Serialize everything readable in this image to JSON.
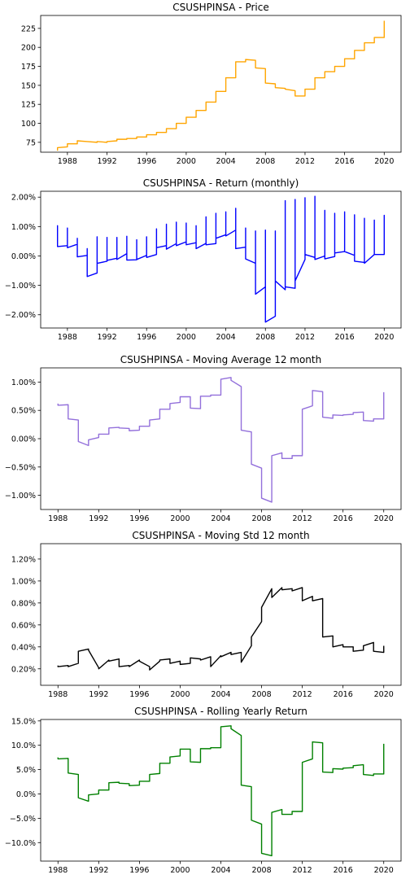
{
  "chart_data": [
    {
      "type": "line",
      "title": "CSUSHPINSA - Price",
      "color": "#ffa500",
      "xlim": [
        1985.3,
        2021.7
      ],
      "ylim": [
        62,
        242
      ],
      "xticks": [
        1988,
        1992,
        1996,
        2000,
        2004,
        2008,
        2012,
        2016,
        2020
      ],
      "xtick_labels": [
        "1988",
        "1992",
        "1996",
        "2000",
        "2004",
        "2008",
        "2012",
        "2016",
        "2020"
      ],
      "yticks": [
        75,
        100,
        125,
        150,
        175,
        200,
        225
      ],
      "ytick_labels": [
        "75",
        "100",
        "125",
        "150",
        "175",
        "200",
        "225"
      ],
      "x": [
        1987,
        1987,
        1988,
        1988,
        1989,
        1989,
        1990,
        1990,
        1991,
        1991,
        1992,
        1992,
        1993,
        1993,
        1994,
        1994,
        1995,
        1995,
        1996,
        1996,
        1997,
        1997,
        1998,
        1998,
        1999,
        1999,
        2000,
        2000,
        2001,
        2001,
        2002,
        2002,
        2003,
        2003,
        2004,
        2004,
        2005,
        2005,
        2006,
        2006,
        2007,
        2007,
        2008,
        2008,
        2009,
        2009,
        2010,
        2010,
        2011,
        2011,
        2012,
        2012,
        2013,
        2013,
        2014,
        2014,
        2015,
        2015,
        2016,
        2016,
        2017,
        2017,
        2018,
        2018,
        2019,
        2019,
        2020,
        2020
      ],
      "y": [
        64,
        68,
        69,
        73,
        73,
        77,
        76,
        76,
        75,
        76,
        75,
        76,
        77,
        79,
        79,
        80,
        80,
        82,
        82,
        85,
        85,
        88,
        88,
        93,
        93,
        100,
        100,
        108,
        108,
        117,
        117,
        128,
        128,
        142,
        142,
        160,
        160,
        181,
        181,
        184,
        183,
        173,
        172,
        153,
        152,
        147,
        146,
        145,
        143,
        136,
        136,
        145,
        145,
        160,
        160,
        168,
        168,
        175,
        175,
        185,
        185,
        196,
        196,
        206,
        206,
        213,
        213,
        235
      ]
    },
    {
      "type": "line",
      "title": "CSUSHPINSA - Return (monthly)",
      "color": "#0000ff",
      "xlim": [
        1985.3,
        2021.7
      ],
      "ylim": [
        -0.0245,
        0.022
      ],
      "xticks": [
        1988,
        1992,
        1996,
        2000,
        2004,
        2008,
        2012,
        2016,
        2020
      ],
      "xtick_labels": [
        "1988",
        "1992",
        "1996",
        "2000",
        "2004",
        "2008",
        "2012",
        "2016",
        "2020"
      ],
      "yticks": [
        -0.02,
        -0.01,
        0.0,
        0.01,
        0.02
      ],
      "ytick_labels": [
        "−2.00%",
        "−1.00%",
        "0.00%",
        "1.00%",
        "2.00%"
      ],
      "x": [
        1987,
        1987,
        1987,
        1988,
        1988,
        1988,
        1989,
        1989,
        1989,
        1990,
        1990,
        1990,
        1991,
        1991,
        1991,
        1992,
        1992,
        1992,
        1993,
        1993,
        1993,
        1994,
        1994,
        1994,
        1995,
        1995,
        1995,
        1996,
        1996,
        1996,
        1997,
        1997,
        1997,
        1998,
        1998,
        1998,
        1999,
        1999,
        1999,
        2000,
        2000,
        2000,
        2001,
        2001,
        2001,
        2002,
        2002,
        2002,
        2003,
        2003,
        2003,
        2004,
        2004,
        2004,
        2005,
        2005,
        2005,
        2006,
        2006,
        2006,
        2007,
        2007,
        2007,
        2008,
        2008,
        2008,
        2009,
        2009,
        2009,
        2010,
        2010,
        2010,
        2011,
        2011,
        2011,
        2012,
        2012,
        2012,
        2013,
        2013,
        2013,
        2014,
        2014,
        2014,
        2015,
        2015,
        2015,
        2016,
        2016,
        2016,
        2017,
        2017,
        2017,
        2018,
        2018,
        2018,
        2019,
        2019,
        2019,
        2020,
        2020,
        2020
      ],
      "y": [
        0.004,
        0.0103,
        0.0032,
        0.0035,
        0.0095,
        0.0028,
        0.004,
        0.006,
        -0.0003,
        0.0002,
        0.0025,
        -0.007,
        -0.0058,
        0.0065,
        -0.0025,
        -0.0018,
        0.0063,
        -0.0015,
        -0.0008,
        0.0063,
        -0.0012,
        0.0008,
        0.0067,
        -0.0014,
        -0.0013,
        0.0055,
        -0.0012,
        0.0002,
        0.0065,
        -0.0005,
        0.0005,
        0.0092,
        0.0028,
        0.0035,
        0.0108,
        0.0023,
        0.0042,
        0.0115,
        0.0035,
        0.0048,
        0.0112,
        0.0038,
        0.0045,
        0.0103,
        0.0025,
        0.0043,
        0.0133,
        0.0038,
        0.0042,
        0.0145,
        0.006,
        0.0072,
        0.015,
        0.0068,
        0.0088,
        0.0162,
        0.0025,
        0.003,
        0.0095,
        -0.001,
        -0.0025,
        0.0085,
        -0.013,
        -0.0105,
        0.0088,
        -0.0225,
        -0.0205,
        0.0085,
        -0.0085,
        -0.0115,
        0.0188,
        -0.0105,
        -0.011,
        0.0192,
        -0.0085,
        -0.0012,
        0.0198,
        0.0005,
        -0.0005,
        0.0203,
        -0.0012,
        0.0,
        0.0155,
        -0.001,
        -0.0002,
        0.0145,
        0.001,
        0.0015,
        0.015,
        0.0015,
        0.0002,
        0.014,
        -0.0018,
        -0.0022,
        0.0128,
        -0.0025,
        0.0005,
        0.0122,
        0.0005,
        0.0005,
        0.0138,
        0.006
      ]
    },
    {
      "type": "line",
      "title": "CSUSHPINSA - Moving Average 12 month",
      "color": "#9370db",
      "xlim": [
        1986.3,
        2021.7
      ],
      "ylim": [
        -0.0125,
        0.0125
      ],
      "xticks": [
        1988,
        1992,
        1996,
        2000,
        2004,
        2008,
        2012,
        2016,
        2020
      ],
      "xtick_labels": [
        "1988",
        "1992",
        "1996",
        "2000",
        "2004",
        "2008",
        "2012",
        "2016",
        "2020"
      ],
      "yticks": [
        -0.01,
        -0.005,
        0.0,
        0.005,
        0.01
      ],
      "ytick_labels": [
        "−1.00%",
        "−0.50%",
        "0.00%",
        "0.50%",
        "1.00%"
      ],
      "x": [
        1988,
        1988,
        1989,
        1989,
        1990,
        1990,
        1991,
        1991,
        1992,
        1992,
        1993,
        1993,
        1994,
        1994,
        1995,
        1995,
        1996,
        1996,
        1997,
        1997,
        1998,
        1998,
        1999,
        1999,
        2000,
        2000,
        2001,
        2001,
        2002,
        2002,
        2003,
        2003,
        2004,
        2004,
        2005,
        2005,
        2006,
        2006,
        2007,
        2007,
        2008,
        2008,
        2009,
        2009,
        2010,
        2010,
        2011,
        2011,
        2012,
        2012,
        2013,
        2013,
        2014,
        2014,
        2015,
        2015,
        2016,
        2016,
        2017,
        2017,
        2018,
        2018,
        2019,
        2019,
        2020,
        2020
      ],
      "y": [
        0.0062,
        0.0059,
        0.006,
        0.0035,
        0.0033,
        -0.0005,
        -0.0012,
        -0.0002,
        0.0002,
        0.0008,
        0.0008,
        0.0019,
        0.002,
        0.0019,
        0.0018,
        0.0014,
        0.0015,
        0.0022,
        0.0022,
        0.0033,
        0.0035,
        0.0052,
        0.0052,
        0.0062,
        0.0064,
        0.0074,
        0.0074,
        0.0054,
        0.0053,
        0.0075,
        0.0075,
        0.0077,
        0.0077,
        0.0105,
        0.0108,
        0.0103,
        0.0092,
        0.0015,
        0.0012,
        -0.0045,
        -0.0052,
        -0.0105,
        -0.0112,
        -0.003,
        -0.0025,
        -0.0035,
        -0.0035,
        -0.003,
        -0.003,
        0.0052,
        0.0058,
        0.0085,
        0.0083,
        0.0038,
        0.0036,
        0.0042,
        0.0041,
        0.0042,
        0.0043,
        0.0046,
        0.0047,
        0.0032,
        0.0031,
        0.0035,
        0.0035,
        0.0082
      ]
    },
    {
      "type": "line",
      "title": "CSUSHPINSA - Moving Std 12 month",
      "color": "#000000",
      "xlim": [
        1986.3,
        2021.7
      ],
      "ylim": [
        0.0005,
        0.0134
      ],
      "xticks": [
        1988,
        1992,
        1996,
        2000,
        2004,
        2008,
        2012,
        2016,
        2020
      ],
      "xtick_labels": [
        "1988",
        "1992",
        "1996",
        "2000",
        "2004",
        "2008",
        "2012",
        "2016",
        "2020"
      ],
      "yticks": [
        0.002,
        0.004,
        0.006,
        0.008,
        0.01,
        0.012
      ],
      "ytick_labels": [
        "0.20%",
        "0.40%",
        "0.60%",
        "0.80%",
        "1.00%",
        "1.20%"
      ],
      "x": [
        1988,
        1988,
        1989,
        1989,
        1990,
        1990,
        1991,
        1991,
        1992,
        1992,
        1993,
        1993,
        1994,
        1994,
        1995,
        1995,
        1996,
        1996,
        1997,
        1997,
        1998,
        1998,
        1999,
        1999,
        2000,
        2000,
        2001,
        2001,
        2002,
        2002,
        2003,
        2003,
        2004,
        2004,
        2005,
        2005,
        2006,
        2006,
        2007,
        2007,
        2008,
        2008,
        2009,
        2009,
        2010,
        2010,
        2011,
        2011,
        2012,
        2012,
        2013,
        2013,
        2014,
        2014,
        2015,
        2015,
        2016,
        2016,
        2017,
        2017,
        2018,
        2018,
        2019,
        2019,
        2020,
        2020
      ],
      "y": [
        0.0023,
        0.0022,
        0.0023,
        0.0022,
        0.0025,
        0.0036,
        0.0038,
        0.0037,
        0.0021,
        0.002,
        0.0028,
        0.0027,
        0.0029,
        0.0022,
        0.0023,
        0.0022,
        0.0028,
        0.0027,
        0.0022,
        0.0019,
        0.0027,
        0.0028,
        0.0029,
        0.0025,
        0.0027,
        0.0024,
        0.0025,
        0.003,
        0.0029,
        0.0028,
        0.0031,
        0.0022,
        0.0032,
        0.0031,
        0.0035,
        0.0033,
        0.0035,
        0.0026,
        0.0041,
        0.0049,
        0.0063,
        0.0076,
        0.0093,
        0.0085,
        0.0094,
        0.0092,
        0.0093,
        0.0091,
        0.0094,
        0.0082,
        0.0086,
        0.0082,
        0.0084,
        0.0049,
        0.005,
        0.004,
        0.0042,
        0.004,
        0.004,
        0.0036,
        0.0037,
        0.0041,
        0.0044,
        0.0036,
        0.0035,
        0.0041
      ]
    },
    {
      "type": "line",
      "title": "CSUSHPINSA - Rolling Yearly Return",
      "color": "#008000",
      "xlim": [
        1986.3,
        2021.7
      ],
      "ylim": [
        -0.138,
        0.153
      ],
      "xticks": [
        1988,
        1992,
        1996,
        2000,
        2004,
        2008,
        2012,
        2016,
        2020
      ],
      "xtick_labels": [
        "1988",
        "1992",
        "1996",
        "2000",
        "2004",
        "2008",
        "2012",
        "2016",
        "2020"
      ],
      "yticks": [
        -0.1,
        -0.05,
        0.0,
        0.05,
        0.1,
        0.15
      ],
      "ytick_labels": [
        "−10.0%",
        "−5.0%",
        "0.0%",
        "5.0%",
        "10.0%",
        "15.0%"
      ],
      "x": [
        1988,
        1988,
        1989,
        1989,
        1990,
        1990,
        1991,
        1991,
        1992,
        1992,
        1993,
        1993,
        1994,
        1994,
        1995,
        1995,
        1996,
        1996,
        1997,
        1997,
        1998,
        1998,
        1999,
        1999,
        2000,
        2000,
        2001,
        2001,
        2002,
        2002,
        2003,
        2003,
        2004,
        2004,
        2005,
        2005,
        2006,
        2006,
        2007,
        2007,
        2008,
        2008,
        2009,
        2009,
        2010,
        2010,
        2011,
        2011,
        2012,
        2012,
        2013,
        2013,
        2014,
        2014,
        2015,
        2015,
        2016,
        2016,
        2017,
        2017,
        2018,
        2018,
        2019,
        2019,
        2020,
        2020
      ],
      "y": [
        0.075,
        0.072,
        0.073,
        0.043,
        0.04,
        -0.008,
        -0.015,
        -0.002,
        0.0,
        0.008,
        0.008,
        0.023,
        0.024,
        0.022,
        0.021,
        0.017,
        0.018,
        0.026,
        0.026,
        0.04,
        0.042,
        0.063,
        0.063,
        0.076,
        0.078,
        0.092,
        0.092,
        0.066,
        0.065,
        0.093,
        0.093,
        0.095,
        0.095,
        0.138,
        0.14,
        0.134,
        0.12,
        0.018,
        0.015,
        -0.054,
        -0.062,
        -0.122,
        -0.127,
        -0.038,
        -0.032,
        -0.042,
        -0.042,
        -0.036,
        -0.036,
        0.065,
        0.072,
        0.107,
        0.105,
        0.045,
        0.044,
        0.052,
        0.051,
        0.053,
        0.054,
        0.058,
        0.06,
        0.04,
        0.038,
        0.041,
        0.041,
        0.103
      ]
    }
  ]
}
